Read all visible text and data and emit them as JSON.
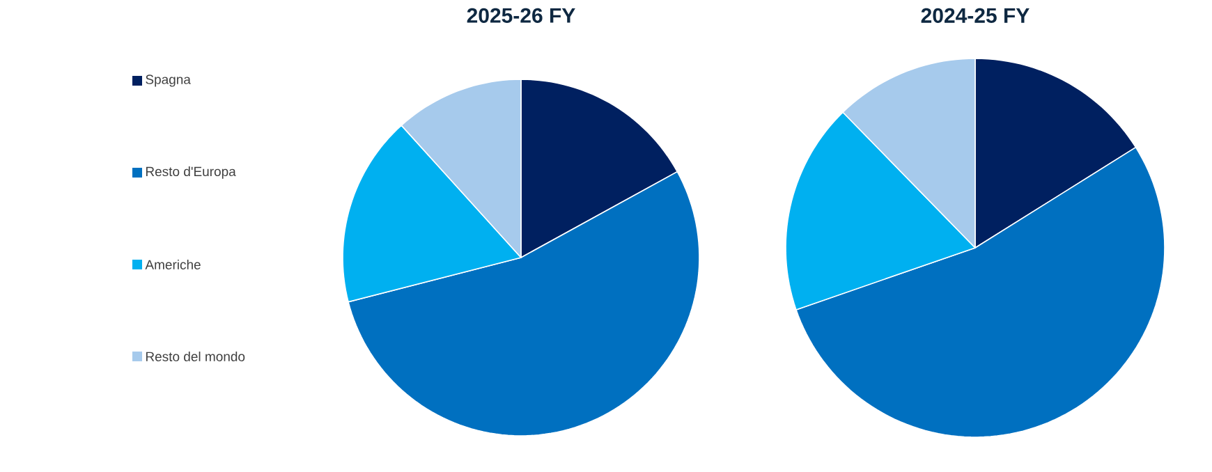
{
  "chart_data": [
    {
      "type": "pie",
      "title": "2025-26 FY",
      "categories": [
        "Spagna",
        "Resto d'Europa",
        "Americhe",
        "Resto del mondo"
      ],
      "values": [
        17,
        54,
        17.3,
        11.7
      ],
      "colors": [
        "#002060",
        "#0070c0",
        "#00b0f0",
        "#a6caec"
      ],
      "legend": "left"
    },
    {
      "type": "pie",
      "title": "2024-25 FY",
      "categories": [
        null,
        null,
        null,
        null
      ],
      "values": [
        16.1,
        53.6,
        18,
        12.3
      ],
      "colors": [
        "#002060",
        "#0070c0",
        "#00b0f0",
        "#a6caec"
      ],
      "legend": false
    }
  ]
}
